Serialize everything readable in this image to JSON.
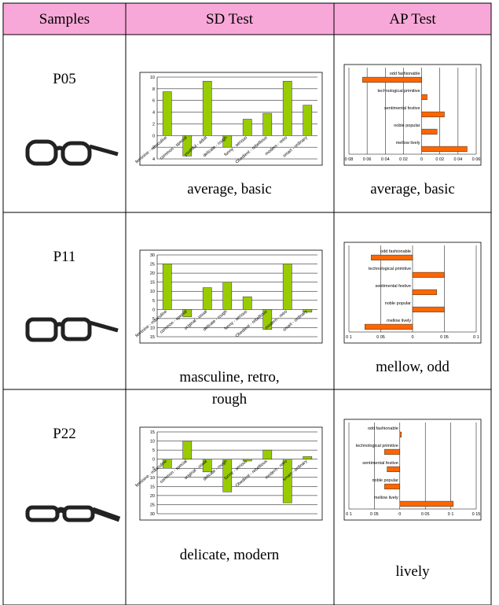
{
  "table": {
    "headers": [
      "Samples",
      "SD Test",
      "AP Test"
    ],
    "rows": [
      {
        "sample": "P05",
        "sd_chart": {
          "type": "bar",
          "categories": [
            "feminine - masculine",
            "common - special",
            "youthful - adult",
            "delicate - rough",
            "funny - serious",
            "Obedient - rebellious",
            "modern - retro",
            "smart - ordinary"
          ],
          "values": [
            7.5,
            -3.5,
            9.3,
            -2,
            2.8,
            3.8,
            9.3,
            5.2
          ],
          "color": "#99cc00",
          "ylim": [
            -4,
            10
          ],
          "yticks": [
            {
              "value": -4,
              "label": "4"
            },
            {
              "value": -2,
              "label": "2"
            },
            0,
            2,
            4,
            6,
            8,
            10
          ],
          "grid": true
        },
        "sd_caption": "average, basic",
        "ap_chart": {
          "type": "barh",
          "categories": [
            "odd fashionable",
            "technological primitive",
            "sentimental festive",
            "noble popular",
            "mellow lively"
          ],
          "values": [
            -0.065,
            0.006,
            0.025,
            0.017,
            0.05
          ],
          "color": "#ff6600",
          "xlim": [
            -0.08,
            0.06
          ],
          "xticks": [
            {
              "value": -0.08,
              "label": "0 08"
            },
            {
              "value": -0.06,
              "label": "0 06"
            },
            {
              "value": -0.04,
              "label": "0 04"
            },
            {
              "value": -0.02,
              "label": "0 02"
            },
            0,
            {
              "value": 0.02,
              "label": "0 02"
            },
            {
              "value": 0.04,
              "label": "0 04"
            },
            {
              "value": 0.06,
              "label": "0 06"
            }
          ],
          "grid": true
        },
        "ap_caption": "average, basic"
      },
      {
        "sample": "P11",
        "sd_chart": {
          "type": "bar",
          "categories": [
            "feminine - masculine",
            "common - special",
            "original - usual",
            "delicate - rough",
            "funny - serious",
            "Obedient - rebellious",
            "modern - retro",
            "smart - ordinary"
          ],
          "values": [
            25,
            -4,
            12,
            15,
            7,
            -11,
            25,
            -1.5
          ],
          "color": "#99cc00",
          "ylim": [
            -15,
            30
          ],
          "yticks": [
            {
              "value": -15,
              "label": "15"
            },
            {
              "value": -10,
              "label": "10"
            },
            {
              "value": -5,
              "label": "5"
            },
            0,
            5,
            10,
            15,
            20,
            25,
            30
          ],
          "grid": true
        },
        "sd_caption": "masculine, retro, rough",
        "ap_chart": {
          "type": "barh",
          "categories": [
            "odd fashionable",
            "technological primitive",
            "sentimental festive",
            "noble popular",
            "mellow lively"
          ],
          "values": [
            -0.065,
            0.05,
            0.038,
            0.05,
            -0.075
          ],
          "color": "#ff6600",
          "xlim": [
            -0.1,
            0.1
          ],
          "xticks": [
            {
              "value": -0.1,
              "label": "0 1"
            },
            {
              "value": -0.05,
              "label": "0 05"
            },
            0,
            {
              "value": 0.05,
              "label": "0 05"
            },
            {
              "value": 0.1,
              "label": "0 1"
            }
          ],
          "grid": true
        },
        "ap_caption": "mellow, odd"
      },
      {
        "sample": "P22",
        "sd_chart": {
          "type": "bar",
          "categories": [
            "feminine - masculine",
            "common - special",
            "original - usual",
            "delicate - rough",
            "funny - serious",
            "Obedient - rebellious",
            "modern - retro",
            "smart - ordinary"
          ],
          "values": [
            -5,
            10,
            -7,
            -18,
            -1,
            5,
            -24,
            1.5
          ],
          "color": "#99cc00",
          "ylim": [
            -30,
            15
          ],
          "yticks": [
            {
              "value": -30,
              "label": "30"
            },
            {
              "value": -25,
              "label": "25"
            },
            {
              "value": -20,
              "label": "20"
            },
            {
              "value": -15,
              "label": "15"
            },
            {
              "value": -10,
              "label": "10"
            },
            {
              "value": -5,
              "label": "5"
            },
            0,
            5,
            10,
            15
          ],
          "grid": true
        },
        "sd_caption": "delicate, modern",
        "ap_chart": {
          "type": "barh",
          "categories": [
            "odd fashionable",
            "technological primitive",
            "sentimental festive",
            "noble popular",
            "mellow lively"
          ],
          "values": [
            0.003,
            -0.03,
            -0.025,
            -0.03,
            0.105
          ],
          "color": "#ff6600",
          "xlim": [
            -0.1,
            0.15
          ],
          "xticks": [
            {
              "value": -0.1,
              "label": "0 1"
            },
            {
              "value": -0.05,
              "label": "0 05"
            },
            0,
            {
              "value": 0.05,
              "label": "0 05"
            },
            {
              "value": 0.1,
              "label": "0 1"
            },
            {
              "value": 0.15,
              "label": "0 15"
            }
          ],
          "grid": true
        },
        "ap_caption": "lively"
      }
    ]
  }
}
